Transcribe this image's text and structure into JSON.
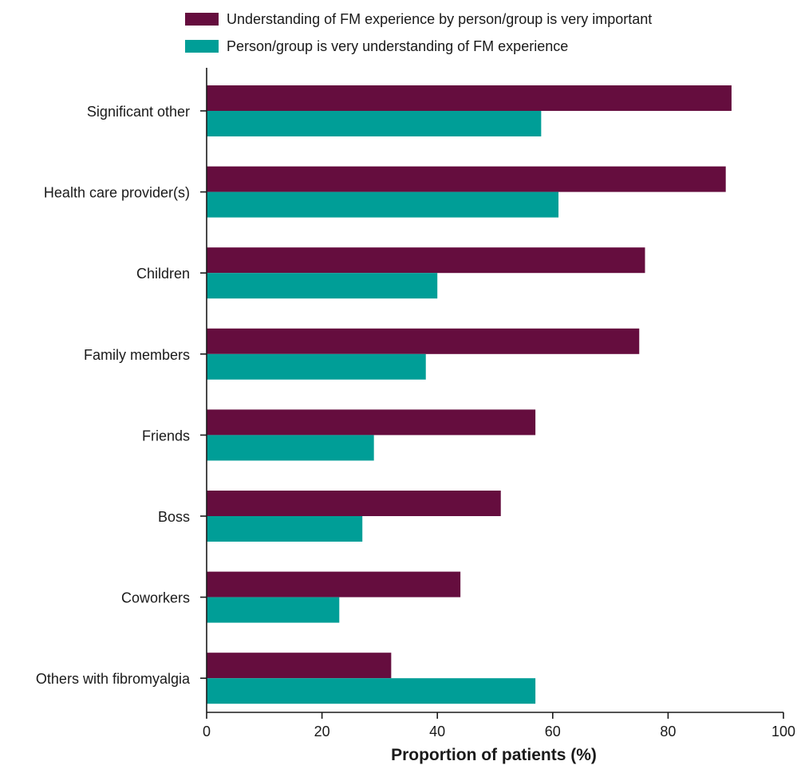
{
  "legend": [
    {
      "label": "Understanding of FM experience by person/group is very important",
      "color": "#650d3e"
    },
    {
      "label": "Person/group is very understanding of FM experience",
      "color": "#009e97"
    }
  ],
  "chart_data": {
    "type": "bar",
    "orientation": "horizontal",
    "categories": [
      "Significant other",
      "Health care provider(s)",
      "Children",
      "Family members",
      "Friends",
      "Boss",
      "Coworkers",
      "Others with fibromyalgia"
    ],
    "series": [
      {
        "name": "Understanding of FM experience by person/group is very important",
        "color": "#650d3e",
        "values": [
          91,
          90,
          76,
          75,
          57,
          51,
          44,
          32
        ]
      },
      {
        "name": "Person/group is very understanding of FM experience",
        "color": "#009e97",
        "values": [
          58,
          61,
          40,
          38,
          29,
          27,
          23,
          57
        ]
      }
    ],
    "xlabel": "Proportion of patients (%)",
    "ylabel": "",
    "xlim": [
      0,
      100
    ],
    "xticks": [
      0,
      20,
      40,
      60,
      80,
      100
    ],
    "grid": false,
    "legend_position": "top"
  }
}
